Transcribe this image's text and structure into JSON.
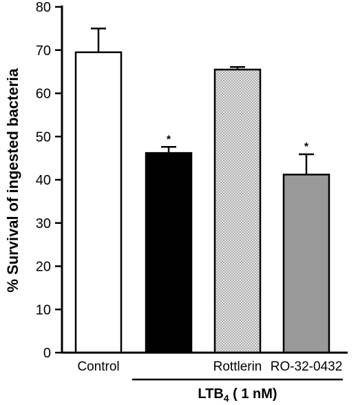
{
  "chart_data": {
    "type": "bar",
    "title": "",
    "ylabel": "% Survival of ingested bacteria",
    "ylim": [
      0,
      80
    ],
    "yticks": [
      0,
      10,
      20,
      30,
      40,
      50,
      60,
      70,
      80
    ],
    "grid": false,
    "categories": [
      "Control",
      "",
      "Rottlerin",
      "RO-32-0432"
    ],
    "values": [
      69.5,
      46.2,
      65.5,
      41.2
    ],
    "errors": [
      5.5,
      1.4,
      0.6,
      4.7
    ],
    "significance": [
      "",
      "*",
      "",
      "*"
    ],
    "bar_styles": [
      {
        "fill": "#ffffff",
        "pattern": "none"
      },
      {
        "fill": "#000000",
        "pattern": "none"
      },
      {
        "fill": "#e6e6e6",
        "pattern": "dots"
      },
      {
        "fill": "#999999",
        "pattern": "none"
      }
    ],
    "group_label": {
      "main": "LTB",
      "subscript": "4",
      "suffix": " ( 1 nM)",
      "spans_categories": [
        1,
        3
      ]
    }
  }
}
